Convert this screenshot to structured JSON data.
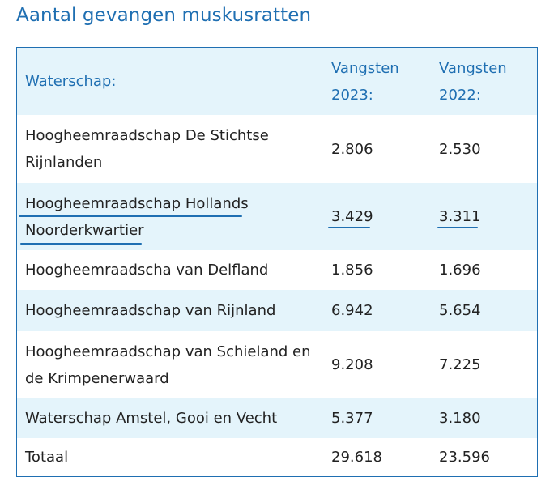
{
  "title": "Aantal gevangen muskusratten",
  "columns": {
    "waterschap": "Waterschap:",
    "vangsten_2023": "Vangsten 2023:",
    "vangsten_2022": "Vangsten 2022:"
  },
  "rows": [
    {
      "waterschap": "Hoogheemraadschap De Stichtse Rijnlanden",
      "v2023": "2.806",
      "v2022": "2.530"
    },
    {
      "waterschap": "Hoogheemraadschap Hollands Noorderkwartier",
      "v2023": "3.429",
      "v2022": "3.311",
      "highlighted": true
    },
    {
      "waterschap": "Hoogheemraadscha van Delfland",
      "v2023": "1.856",
      "v2022": "1.696"
    },
    {
      "waterschap": "Hoogheemraadschap van Rijnland",
      "v2023": "6.942",
      "v2022": "5.654"
    },
    {
      "waterschap": "Hoogheemraadschap van Schieland en de Krimpenerwaard",
      "v2023": "9.208",
      "v2022": "7.225"
    },
    {
      "waterschap": "Waterschap Amstel, Gooi en Vecht",
      "v2023": "5.377",
      "v2022": "3.180"
    }
  ],
  "total": {
    "label": "Totaal",
    "v2023": "29.618",
    "v2022": "23.596"
  },
  "colors": {
    "accent": "#1f6fb2",
    "row_shade": "#e4f4fb",
    "text": "#222222"
  }
}
